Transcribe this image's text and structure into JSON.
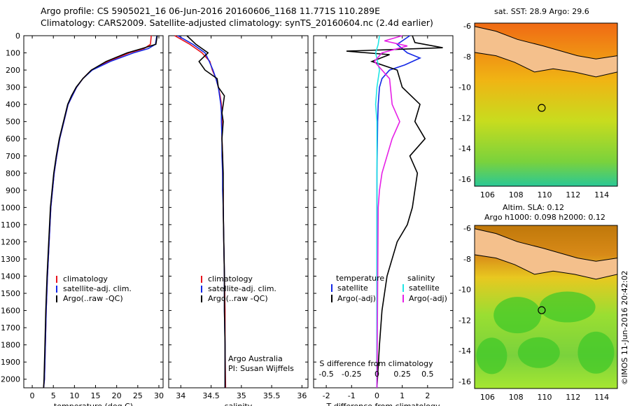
{
  "header": {
    "line1": "Argo profile: CS 5905021_16 06-Jun-2016 20160606_1168 11.771S 110.289E",
    "line2": "Climatology: CARS2009. Satellite-adjusted climatology: synTS_20160604.nc (2.4d earlier)"
  },
  "credit": "©IMOS 11-Jun-2016 20:42:02",
  "map_top": {
    "title": "sat. SST: 28.9 Argo: 29.6"
  },
  "map_bottom": {
    "title1": "Altim. SLA: 0.12",
    "title2": "Argo h1000: 0.098 h2000: 0.12"
  },
  "colors": {
    "climatology": "#e8141e",
    "satellite": "#1428e6",
    "argo": "#000000",
    "sat_salinity": "#20e6e6",
    "argo_salinity": "#e620e6"
  },
  "chart_data": [
    {
      "type": "line",
      "xlabel": "temperature (deg C)",
      "xlim": [
        -2,
        31
      ],
      "ylim": [
        2050,
        0
      ],
      "yticks": [
        0,
        100,
        200,
        300,
        400,
        500,
        600,
        700,
        800,
        900,
        1000,
        1100,
        1200,
        1300,
        1400,
        1500,
        1600,
        1700,
        1800,
        1900,
        2000
      ],
      "xticks": [
        0,
        5,
        10,
        15,
        20,
        25,
        30
      ],
      "legend": [
        "climatology",
        "satellite-adj. clim.",
        "Argo(..raw -QC)"
      ],
      "series": [
        {
          "name": "climatology",
          "x": [
            28.2,
            28.0,
            26.5,
            23.0,
            18.0,
            14.0,
            12.0,
            10.5,
            9.5,
            8.5,
            7.5,
            6.5,
            5.8,
            5.2,
            4.8,
            4.4,
            4.0,
            3.6,
            3.3,
            3.1,
            2.9,
            2.7
          ],
          "y": [
            0,
            50,
            75,
            100,
            150,
            200,
            250,
            300,
            350,
            400,
            500,
            600,
            700,
            800,
            900,
            1000,
            1200,
            1400,
            1600,
            1800,
            2000,
            2050
          ]
        },
        {
          "name": "satellite-adj. clim.",
          "x": [
            29.5,
            29.2,
            27.5,
            24.0,
            18.5,
            14.2,
            12.0,
            10.5,
            9.5,
            8.5,
            7.5,
            6.5,
            5.8,
            5.2,
            4.8,
            4.4,
            4.0,
            3.6,
            3.3,
            3.1,
            2.9,
            2.7
          ],
          "y": [
            0,
            50,
            75,
            100,
            150,
            200,
            250,
            300,
            350,
            400,
            500,
            600,
            700,
            800,
            900,
            1000,
            1200,
            1400,
            1600,
            1800,
            2000,
            2050
          ]
        },
        {
          "name": "Argo(..raw -QC)",
          "x": [
            29.6,
            29.3,
            26.0,
            22.5,
            17.5,
            14.0,
            12.0,
            10.4,
            9.3,
            8.4,
            7.4,
            6.4,
            5.7,
            5.1,
            4.7,
            4.3,
            3.9,
            3.5,
            3.2,
            3.0,
            2.8,
            2.7
          ],
          "y": [
            0,
            50,
            75,
            100,
            150,
            200,
            250,
            300,
            350,
            400,
            500,
            600,
            700,
            800,
            900,
            1000,
            1200,
            1400,
            1600,
            1800,
            2000,
            2050
          ]
        }
      ]
    },
    {
      "type": "line",
      "xlabel": "salinity",
      "xlim": [
        33.8,
        36.1
      ],
      "ylim": [
        2050,
        0
      ],
      "xticks": [
        34,
        34.5,
        35,
        35.5,
        36
      ],
      "legend": [
        "climatology",
        "satellite-adj. clim.",
        "Argo(..raw -QC)"
      ],
      "annotation": [
        "Argo Australia",
        "PI: Susan Wijffels"
      ],
      "series": [
        {
          "name": "climatology",
          "x": [
            33.9,
            34.15,
            34.35,
            34.48,
            34.52,
            34.58,
            34.62,
            34.65,
            34.67,
            34.68,
            34.68,
            34.68,
            34.69,
            34.69,
            34.7,
            34.7,
            34.71,
            34.72,
            34.73,
            34.73,
            34.74
          ],
          "y": [
            0,
            50,
            100,
            150,
            200,
            250,
            300,
            350,
            400,
            450,
            500,
            600,
            700,
            800,
            900,
            1000,
            1200,
            1400,
            1600,
            1800,
            2050
          ]
        },
        {
          "name": "satellite-adj. clim.",
          "x": [
            33.95,
            34.2,
            34.4,
            34.47,
            34.53,
            34.58,
            34.62,
            34.64,
            34.66,
            34.67,
            34.67,
            34.68,
            34.68,
            34.69,
            34.69,
            34.7,
            34.71,
            34.72,
            34.72,
            34.73,
            34.73
          ],
          "y": [
            0,
            50,
            100,
            150,
            200,
            250,
            300,
            350,
            400,
            450,
            500,
            600,
            700,
            800,
            900,
            1000,
            1200,
            1400,
            1600,
            1800,
            2050
          ]
        },
        {
          "name": "Argo(..raw -QC)",
          "x": [
            34.1,
            34.25,
            34.45,
            34.3,
            34.4,
            34.6,
            34.62,
            34.72,
            34.7,
            34.68,
            34.7,
            34.68,
            34.69,
            34.7,
            34.7,
            34.7,
            34.71,
            34.72,
            34.72,
            34.73,
            34.73
          ],
          "y": [
            0,
            50,
            100,
            150,
            200,
            250,
            300,
            350,
            400,
            450,
            500,
            600,
            700,
            800,
            900,
            1000,
            1200,
            1400,
            1600,
            1800,
            2050
          ]
        }
      ]
    },
    {
      "type": "line",
      "xlabel": "T difference from climatology",
      "xlabel_top": "S difference from climatology",
      "xlim": [
        -2.5,
        3.0
      ],
      "ylim": [
        2050,
        0
      ],
      "xticks": [
        -2,
        -1,
        0,
        1,
        2
      ],
      "xticks_top": [
        "-0.5",
        "-0.25",
        "0",
        "0.25",
        "0.5"
      ],
      "legend_titles": [
        "temperature",
        "salinity"
      ],
      "legend": [
        "satellite",
        "Argo(-adj)",
        "satellite",
        "Argo(-adj)"
      ],
      "series": [
        {
          "name": "satellite",
          "x": [
            1.3,
            0.8,
            1.2,
            1.7,
            1.1,
            0.5,
            0.2,
            0.1,
            0.05,
            0.03,
            0.02,
            0.01,
            0.0,
            0.0,
            0.0,
            0.0,
            0.0,
            0.0,
            0.0
          ],
          "y": [
            0,
            50,
            100,
            130,
            170,
            200,
            250,
            300,
            400,
            500,
            600,
            700,
            800,
            1000,
            1200,
            1400,
            1600,
            1800,
            2050
          ]
        },
        {
          "name": "Argo(-adj)",
          "x": [
            1.4,
            1.5,
            2.6,
            -1.2,
            0.5,
            -0.2,
            0.8,
            1.0,
            1.7,
            1.5,
            1.9,
            1.3,
            1.6,
            1.5,
            1.4,
            1.2,
            0.8,
            0.4,
            0.2,
            0.1,
            0.0
          ],
          "y": [
            0,
            40,
            70,
            90,
            110,
            150,
            200,
            300,
            400,
            500,
            600,
            700,
            800,
            900,
            1000,
            1100,
            1200,
            1400,
            1600,
            1800,
            2050
          ]
        },
        {
          "name": "satellite",
          "x": [
            0.1,
            0.05,
            -0.05,
            0.1,
            0.0,
            -0.05,
            0.0,
            0.0,
            0.0,
            0.0,
            0.0,
            0.0,
            0.0,
            0.0,
            0.0
          ],
          "y": [
            0,
            50,
            100,
            200,
            300,
            400,
            500,
            600,
            700,
            800,
            1000,
            1200,
            1400,
            1600,
            2050
          ]
        },
        {
          "name": "Argo(-adj)",
          "x": [
            1.0,
            0.3,
            1.2,
            0.2,
            -0.1,
            0.5,
            0.6,
            0.9,
            0.6,
            0.4,
            0.2,
            0.1,
            0.05,
            0.0
          ],
          "y": [
            0,
            30,
            60,
            100,
            150,
            250,
            400,
            500,
            600,
            700,
            800,
            900,
            1000,
            2050
          ]
        }
      ]
    }
  ],
  "map_axes": {
    "xticks": [
      "106",
      "108",
      "110",
      "112",
      "114"
    ],
    "yticks": [
      "-6",
      "-8",
      "-10",
      "-12",
      "-14",
      "-16"
    ]
  }
}
